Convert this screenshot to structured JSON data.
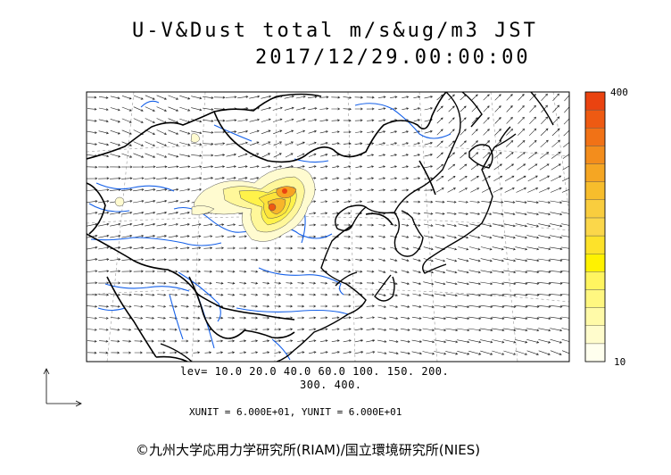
{
  "title": {
    "line1": "U-V&Dust total m/s&ug/m3 JST",
    "line2": "2017/12/29.00:00:00"
  },
  "colorbar": {
    "max_label": "400",
    "min_label": "10",
    "colors": [
      "#ffffee",
      "#fffccc",
      "#fffaa8",
      "#fff780",
      "#fff560",
      "#fff200",
      "#fde22a",
      "#fbd74a",
      "#f9cd3e",
      "#f7bd2c",
      "#f5a623",
      "#f38d1c",
      "#f17216",
      "#ee5a12",
      "#ea4310"
    ]
  },
  "levels": {
    "line1": "lev= 10.0 20.0 40.0 60.0 100. 150. 200.",
    "line2": "300. 400."
  },
  "units": {
    "text": "XUNIT = 6.000E+01, YUNIT = 6.000E+01"
  },
  "copyright": {
    "text": "©九州大学応用力学研究所(RIAM)/国立環境研究所(NIES)"
  }
}
